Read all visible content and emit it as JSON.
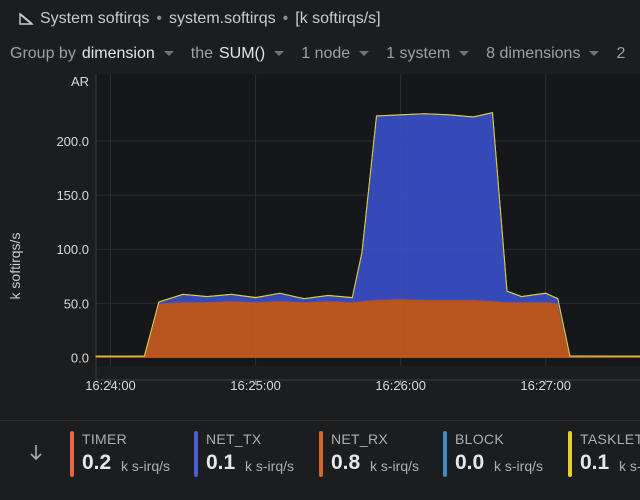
{
  "header": {
    "title": "System softirqs",
    "context": "system.softirqs",
    "units": "[k softirqs/s]"
  },
  "filters": {
    "group_by_prefix": "Group by",
    "group_by_value": "dimension",
    "agg_prefix": "the",
    "agg_value": "SUM()",
    "nodes": "1 node",
    "systems": "1 system",
    "dimensions": "8 dimensions",
    "more": "2"
  },
  "chart_data": {
    "type": "area",
    "stacked": true,
    "ylabel": "k softirqs/s",
    "y_badge": "AR",
    "yticks": [
      "0.0",
      "50.0",
      "100.0",
      "150.0",
      "200.0"
    ],
    "ytick_values": [
      0,
      50,
      100,
      150,
      200
    ],
    "ylim": [
      -8,
      262
    ],
    "xticks": [
      "16:24:00",
      "16:25:00",
      "16:26:00",
      "16:27:00"
    ],
    "xtick_values": [
      0,
      60,
      120,
      180
    ],
    "xlim": [
      -6,
      219
    ],
    "x": [
      -6,
      0,
      10,
      14,
      20,
      30,
      40,
      50,
      60,
      70,
      80,
      90,
      100,
      104,
      110,
      120,
      130,
      140,
      150,
      158,
      164,
      170,
      180,
      185,
      190,
      219
    ],
    "series": [
      {
        "name": "TIMER",
        "color": "#e8663f",
        "values": [
          0.2,
          0.2,
          0.2,
          0.2,
          0.2,
          0.2,
          0.2,
          0.2,
          0.2,
          0.2,
          0.2,
          0.2,
          0.2,
          0.2,
          0.2,
          0.2,
          0.2,
          0.2,
          0.2,
          0.2,
          0.2,
          0.2,
          0.2,
          0.2,
          0.2,
          0.2
        ]
      },
      {
        "name": "NET_RX",
        "color": "#c75a1d",
        "values": [
          0.8,
          0.8,
          0.8,
          0.9,
          50,
          51,
          51,
          52,
          51,
          52,
          51,
          52,
          51,
          52,
          53,
          54,
          53,
          53,
          53,
          52,
          51,
          51,
          51,
          50,
          0.9,
          0.8
        ]
      },
      {
        "name": "NET_TX",
        "color": "#3a4fc4",
        "values": [
          0.1,
          0.1,
          0.1,
          0.1,
          1,
          7,
          5,
          6,
          4,
          7,
          3,
          5,
          4,
          45,
          170,
          170,
          172,
          171,
          169,
          174,
          10,
          5,
          8,
          4,
          0.1,
          0.1
        ]
      },
      {
        "name": "BLOCK",
        "color": "#3d8bc9",
        "values": [
          0,
          0,
          0,
          0,
          0,
          0,
          0,
          0,
          0,
          0,
          0,
          0,
          0,
          0,
          0,
          0,
          0,
          0,
          0,
          0,
          0,
          0,
          0,
          0,
          0,
          0
        ]
      },
      {
        "name": "TASKLET",
        "color": "#e8d02c",
        "values": [
          0.1,
          0.1,
          0.1,
          0.1,
          0.1,
          0.1,
          0.1,
          0.1,
          0.1,
          0.1,
          0.1,
          0.1,
          0.1,
          0.1,
          0.1,
          0.1,
          0.1,
          0.1,
          0.1,
          0.1,
          0.1,
          0.1,
          0.1,
          0.1,
          0.1,
          0.1
        ]
      }
    ]
  },
  "legend": {
    "unit": "k s-irq/s",
    "items": [
      {
        "name": "TIMER",
        "value": "0.2",
        "color": "#e8663f"
      },
      {
        "name": "NET_TX",
        "value": "0.1",
        "color": "#4a5fd6"
      },
      {
        "name": "NET_RX",
        "value": "0.8",
        "color": "#d2652a"
      },
      {
        "name": "BLOCK",
        "value": "0.0",
        "color": "#3d8bc9"
      },
      {
        "name": "TASKLET",
        "value": "0.1",
        "color": "#e8d02c"
      }
    ]
  },
  "icons": {
    "title_icon": "chart-icon",
    "legend_toggle": "arrow-down-icon",
    "dropdown": "chevron-down-icon"
  }
}
